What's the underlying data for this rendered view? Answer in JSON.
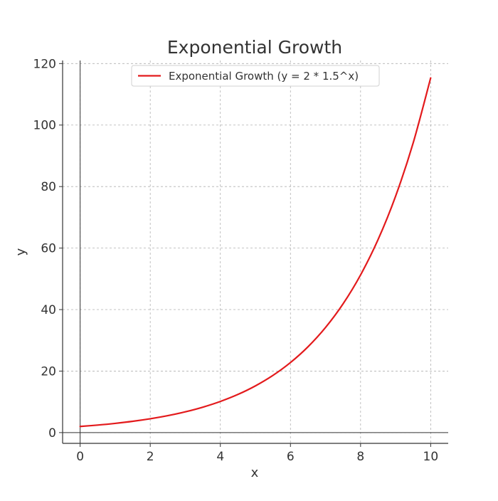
{
  "chart_data": {
    "type": "line",
    "title": "Exponential Growth",
    "xlabel": "x",
    "ylabel": "y",
    "xlim": [
      -0.5,
      10.5
    ],
    "ylim": [
      -3.5,
      121
    ],
    "x_ticks": [
      0,
      2,
      4,
      6,
      8,
      10
    ],
    "y_ticks": [
      0,
      20,
      40,
      60,
      80,
      100,
      120
    ],
    "x_tick_labels": [
      "0",
      "2",
      "4",
      "6",
      "8",
      "10"
    ],
    "y_tick_labels": [
      "0",
      "20",
      "40",
      "60",
      "80",
      "100",
      "120"
    ],
    "grid": true,
    "legend_position": "top-center",
    "series": [
      {
        "name": "Exponential Growth (y = 2 * 1.5^x)",
        "color": "#e31a1c",
        "x": [
          0,
          0.5,
          1,
          1.5,
          2,
          2.5,
          3,
          3.5,
          4,
          4.5,
          5,
          5.5,
          6,
          6.5,
          7,
          7.5,
          8,
          8.5,
          9,
          9.5,
          10
        ],
        "y": [
          2,
          2.45,
          3,
          3.67,
          4.5,
          5.51,
          6.75,
          8.27,
          10.13,
          12.4,
          15.19,
          18.6,
          22.78,
          27.9,
          34.17,
          41.85,
          51.26,
          62.78,
          76.89,
          94.17,
          115.33
        ]
      }
    ],
    "reference_lines": {
      "x_zero": true,
      "y_zero": true
    }
  }
}
